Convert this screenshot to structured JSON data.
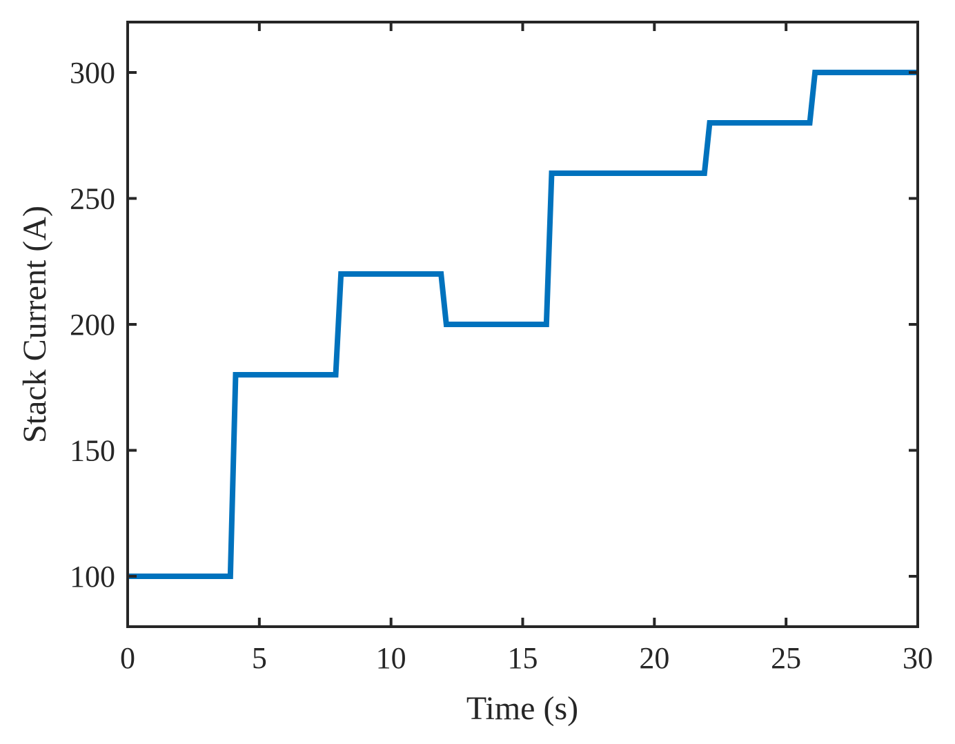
{
  "chart_data": {
    "type": "line",
    "title": "",
    "xlabel": "Time (s)",
    "ylabel": "Stack Current (A)",
    "xlim": [
      0,
      30
    ],
    "ylim": [
      80,
      320
    ],
    "x_ticks": [
      0,
      5,
      10,
      15,
      20,
      25,
      30
    ],
    "y_ticks": [
      100,
      150,
      200,
      250,
      300
    ],
    "x_tick_labels": [
      "0",
      "5",
      "10",
      "15",
      "20",
      "25",
      "30"
    ],
    "y_tick_labels": [
      "100",
      "150",
      "200",
      "250",
      "300"
    ],
    "grid": false,
    "legend": "none",
    "series": [
      {
        "color": "#0072BD",
        "x": [
          0,
          3.9,
          4.1,
          7.9,
          8.1,
          11.9,
          12.1,
          15.9,
          16.1,
          21.9,
          22.1,
          25.9,
          26.1,
          30
        ],
        "y": [
          100,
          100,
          180,
          180,
          220,
          220,
          200,
          200,
          260,
          260,
          280,
          280,
          300,
          300
        ]
      }
    ],
    "axis_color": "#262626"
  }
}
